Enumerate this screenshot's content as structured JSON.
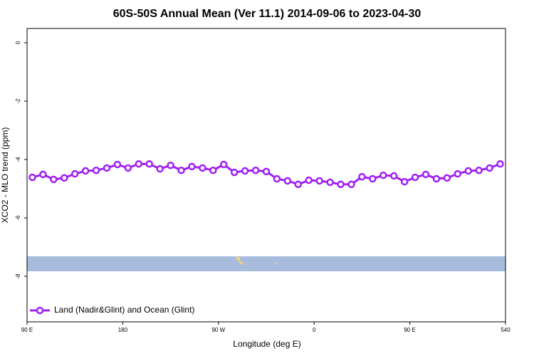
{
  "chart_data": {
    "type": "line",
    "title": "60S-50S Annual Mean (Ver 11.1)   2014-09-06 to 2023-04-30",
    "x_label": "Longitude (deg E)",
    "y_label": "XCO2 - MLO trend (ppm)",
    "x": [
      95,
      105,
      115,
      125,
      135,
      145,
      155,
      165,
      175,
      185,
      195,
      205,
      215,
      225,
      235,
      245,
      255,
      265,
      275,
      285,
      295,
      305,
      315,
      325,
      335,
      345,
      355,
      365,
      375,
      385,
      395,
      405,
      415,
      425,
      435,
      445,
      455,
      465,
      475,
      485,
      495,
      505,
      515,
      525,
      535
    ],
    "series": [
      {
        "name": "Land (Nadir&Glint) and Ocean (Glint)",
        "color": "#a020f0",
        "values": [
          -4.61,
          -4.51,
          -4.68,
          -4.63,
          -4.49,
          -4.39,
          -4.37,
          -4.29,
          -4.17,
          -4.29,
          -4.15,
          -4.15,
          -4.32,
          -4.2,
          -4.37,
          -4.24,
          -4.29,
          -4.37,
          -4.17,
          -4.44,
          -4.39,
          -4.37,
          -4.41,
          -4.66,
          -4.73,
          -4.85,
          -4.71,
          -4.73,
          -4.78,
          -4.85,
          -4.85,
          -4.59,
          -4.66,
          -4.54,
          -4.56,
          -4.76,
          -4.61,
          -4.51,
          -4.66,
          -4.63,
          -4.49,
          -4.39,
          -4.37,
          -4.29,
          -4.15
        ]
      }
    ],
    "xlim": [
      90,
      540
    ],
    "xticks": [
      {
        "value": 90,
        "label": "90 E"
      },
      180,
      {
        "value": 270,
        "label": "90 W"
      },
      {
        "value": 360,
        "label": "0"
      },
      {
        "value": 450,
        "label": "90 E"
      },
      540
    ],
    "ylim": [
      -9.56,
      0.49
    ],
    "yticks": [
      0,
      -2,
      -4,
      -6,
      -8
    ],
    "legend": "bottom-left"
  }
}
